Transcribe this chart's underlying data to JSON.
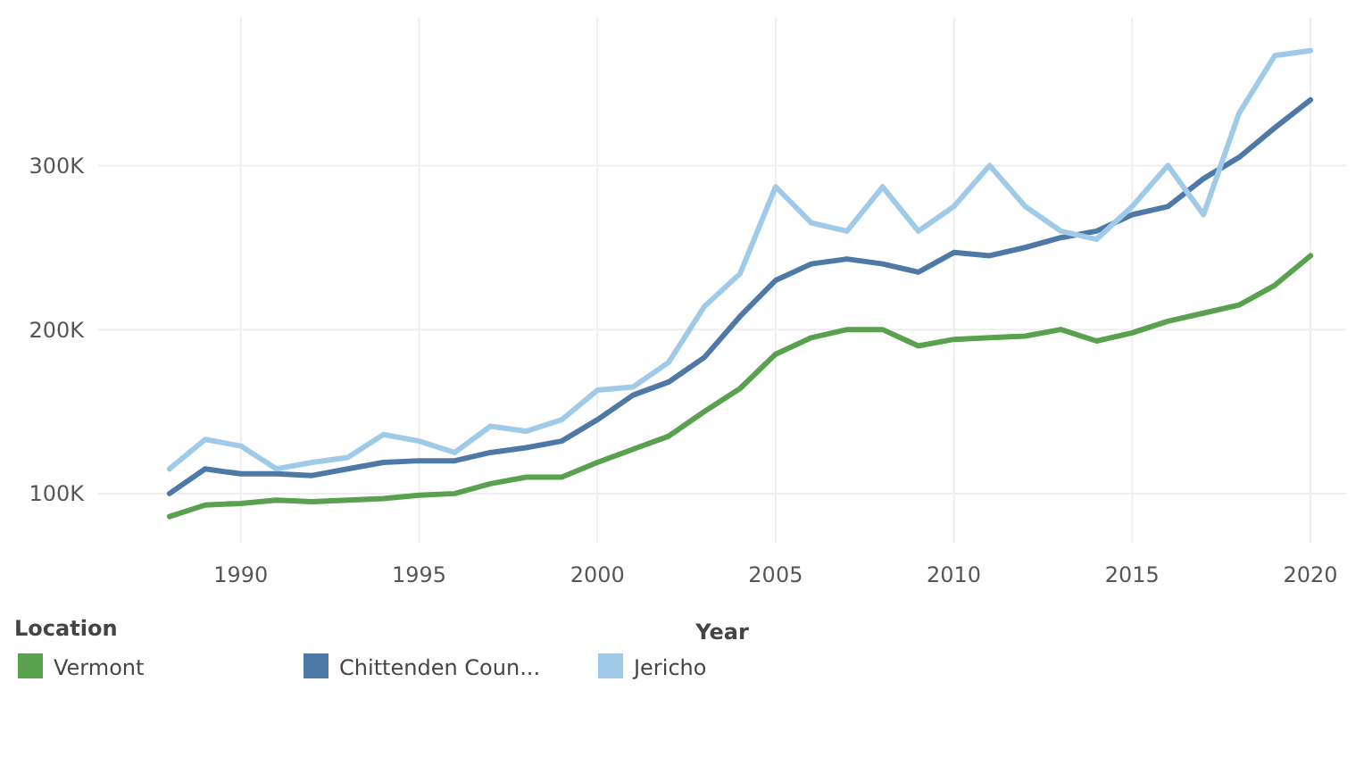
{
  "chart_data": {
    "type": "line",
    "xlabel": "Year",
    "legend_title": "Location",
    "legend": "bottom left",
    "grid": true,
    "line_style": "solid",
    "x": [
      1988,
      1989,
      1990,
      1991,
      1992,
      1993,
      1994,
      1995,
      1996,
      1997,
      1998,
      1999,
      2000,
      2001,
      2002,
      2003,
      2004,
      2005,
      2006,
      2007,
      2008,
      2009,
      2010,
      2011,
      2012,
      2013,
      2014,
      2015,
      2016,
      2017,
      2018,
      2019,
      2020
    ],
    "xlim": [
      1986,
      2021
    ],
    "xticks": [
      1990,
      1995,
      2000,
      2005,
      2010,
      2015,
      2020
    ],
    "ylim": [
      70000,
      390000
    ],
    "yticks": [
      {
        "value": 100000,
        "label": "100K"
      },
      {
        "value": 200000,
        "label": "200K"
      },
      {
        "value": 300000,
        "label": "300K"
      }
    ],
    "series": [
      {
        "name": "Vermont",
        "color": "#59a14f",
        "values": [
          86000,
          93000,
          94000,
          96000,
          95000,
          96000,
          97000,
          99000,
          100000,
          106000,
          110000,
          110000,
          119000,
          127000,
          135000,
          150000,
          164000,
          185000,
          195000,
          200000,
          200000,
          190000,
          194000,
          195000,
          196000,
          200000,
          193000,
          198000,
          205000,
          210000,
          215000,
          227000,
          245000
        ]
      },
      {
        "name": "Chittenden Coun...",
        "color": "#4e79a7",
        "values": [
          100000,
          115000,
          112000,
          112000,
          111000,
          115000,
          119000,
          120000,
          120000,
          125000,
          128000,
          132000,
          145000,
          160000,
          168000,
          183000,
          208000,
          230000,
          240000,
          243000,
          240000,
          235000,
          247000,
          245000,
          250000,
          256000,
          260000,
          270000,
          275000,
          292000,
          305000,
          323000,
          340000
        ]
      },
      {
        "name": "Jericho",
        "color": "#a0cbe8",
        "values": [
          115000,
          133000,
          129000,
          115000,
          119000,
          122000,
          136000,
          132000,
          125000,
          141000,
          138000,
          145000,
          163000,
          165000,
          180000,
          214000,
          234000,
          287000,
          265000,
          260000,
          287000,
          260000,
          275000,
          300000,
          275000,
          260000,
          255000,
          275000,
          300000,
          270000,
          332000,
          367000,
          370000
        ]
      }
    ]
  }
}
